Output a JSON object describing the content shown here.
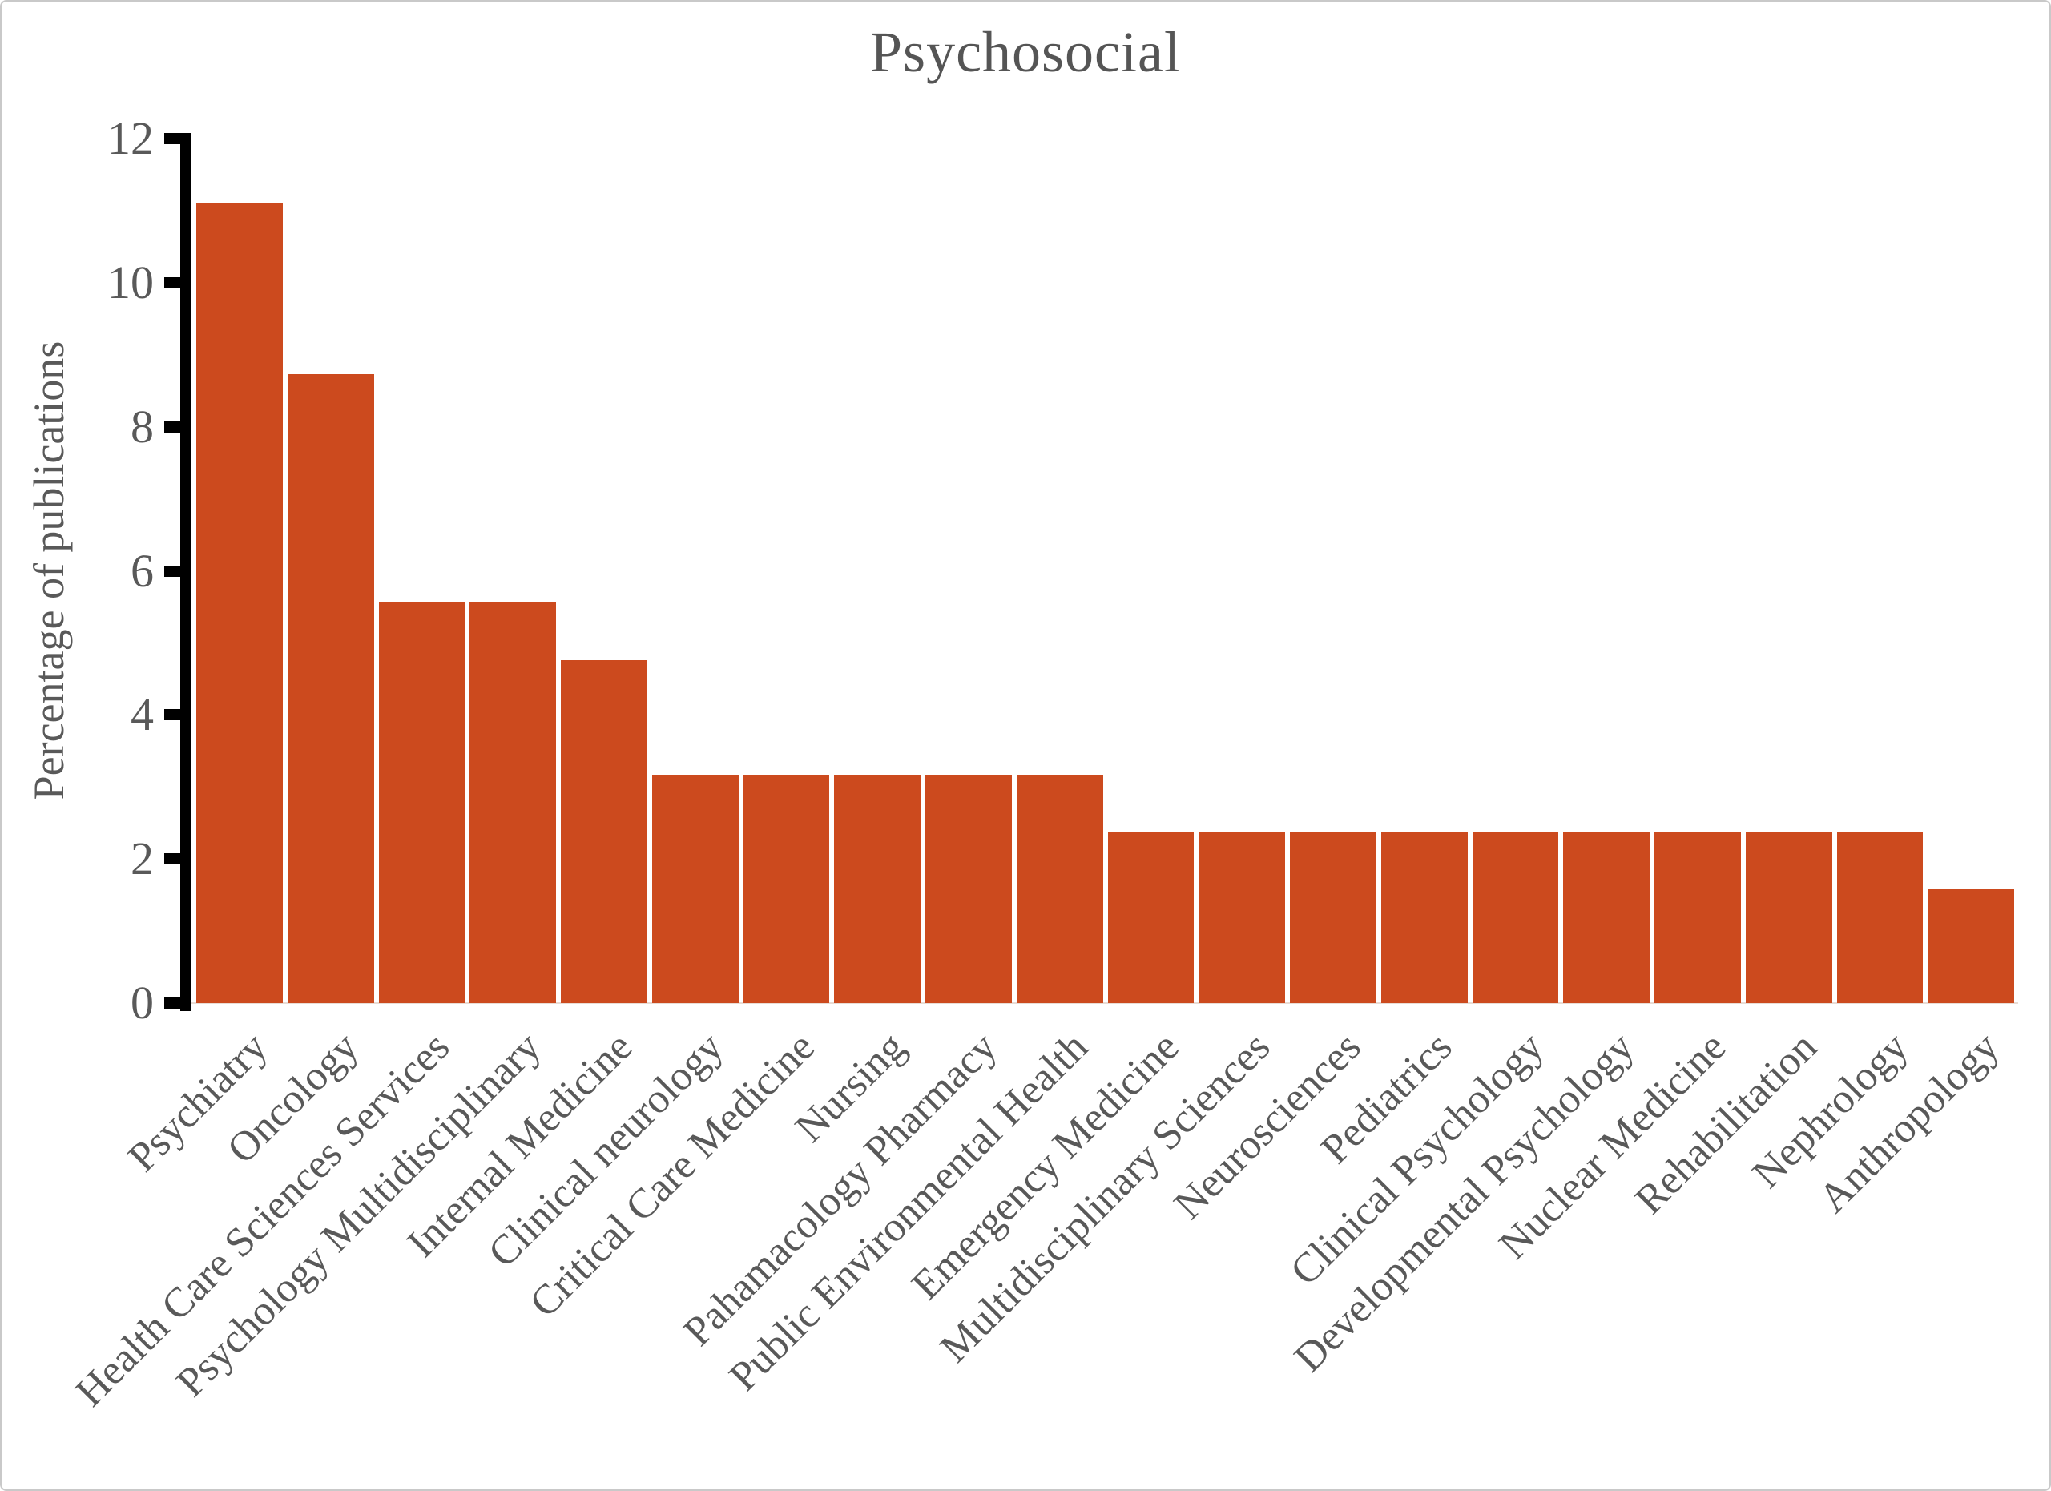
{
  "chart_data": {
    "type": "bar",
    "title": "Psychosocial",
    "xlabel": "",
    "ylabel": "Percentage of publications",
    "ylim": [
      0,
      12
    ],
    "yticks": [
      0,
      2,
      4,
      6,
      8,
      10,
      12
    ],
    "grid": "off",
    "legend": "none",
    "bar_color": "#cc4a1e",
    "axis_color": "#000000",
    "text_color": "#595959",
    "baseline_color": "#e8dcd5",
    "categories": [
      "Psychiatry",
      "Oncology",
      "Health Care Sciences Services",
      "Psychology Multidisciplinary",
      "Internal Medicine",
      "Clinical neurology",
      "Critical Care Medicine",
      "Nursing",
      "Pahamacology Pharmacy",
      "Public Environmental Health",
      "Emergency Medicine",
      "Multidisciplinary Sciences",
      "Neurosciences",
      "Pediatrics",
      "Clinical Psychology",
      "Developmental Psychology",
      "Nuclear Medicine",
      "Rehabilitation",
      "Nephrology",
      "Anthropology"
    ],
    "values": [
      11.11,
      8.73,
      5.56,
      5.56,
      4.76,
      3.17,
      3.17,
      3.17,
      3.17,
      3.17,
      2.38,
      2.38,
      2.38,
      2.38,
      2.38,
      2.38,
      2.38,
      2.38,
      2.38,
      1.59
    ]
  }
}
